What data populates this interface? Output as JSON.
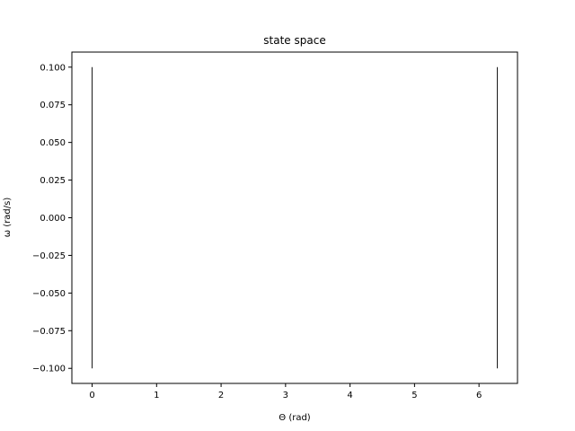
{
  "chart_data": {
    "type": "line",
    "title": "state space",
    "xlabel": "Θ (rad)",
    "ylabel": "ω (rad/s)",
    "xlim": [
      -0.314,
      6.597
    ],
    "ylim": [
      -0.11,
      0.11
    ],
    "xticks": [
      0,
      1,
      2,
      3,
      4,
      5,
      6
    ],
    "xtick_labels": [
      "0",
      "1",
      "2",
      "3",
      "4",
      "5",
      "6"
    ],
    "yticks": [
      0.1,
      0.075,
      0.05,
      0.025,
      0.0,
      -0.025,
      -0.05,
      -0.075,
      -0.1
    ],
    "ytick_labels": [
      "0.100",
      "0.075",
      "0.050",
      "0.025",
      "0.000",
      "−0.025",
      "−0.050",
      "−0.075",
      "−0.100"
    ],
    "grid": false,
    "legend": "none",
    "line_color": "#000000",
    "series": [
      {
        "x": [
          0.0,
          0.0
        ],
        "y": [
          -0.1,
          0.1
        ]
      },
      {
        "x": [
          6.283,
          6.283
        ],
        "y": [
          -0.1,
          0.1
        ]
      }
    ]
  }
}
